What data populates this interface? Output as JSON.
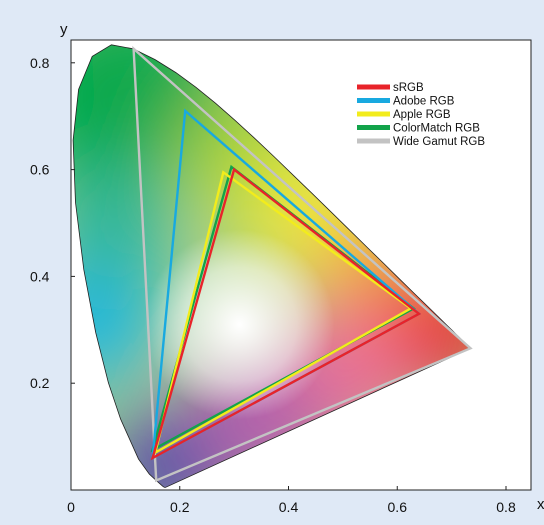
{
  "chart_data": {
    "type": "line",
    "title": "",
    "xlabel": "x",
    "ylabel": "y",
    "xlim": [
      0,
      0.85
    ],
    "ylim": [
      0,
      0.88
    ],
    "xticks": [
      "0",
      "0.2",
      "0.4",
      "0.6",
      "0.8"
    ],
    "xtick_values": [
      0,
      0.2,
      0.4,
      0.6,
      0.8
    ],
    "yticks": [
      "0.2",
      "0.4",
      "0.6",
      "0.8"
    ],
    "ytick_values": [
      0.2,
      0.4,
      0.6,
      0.8
    ],
    "grid": false,
    "legend_position": "top-right",
    "spectral_locus": [
      [
        0.1741,
        0.005
      ],
      [
        0.1738,
        0.0049
      ],
      [
        0.1733,
        0.0048
      ],
      [
        0.1726,
        0.0048
      ],
      [
        0.1714,
        0.0051
      ],
      [
        0.1689,
        0.0069
      ],
      [
        0.1644,
        0.0109
      ],
      [
        0.1566,
        0.0177
      ],
      [
        0.144,
        0.0297
      ],
      [
        0.1241,
        0.0578
      ],
      [
        0.0913,
        0.1327
      ],
      [
        0.0687,
        0.2007
      ],
      [
        0.0454,
        0.295
      ],
      [
        0.0235,
        0.4127
      ],
      [
        0.0082,
        0.5384
      ],
      [
        0.0039,
        0.6548
      ],
      [
        0.0139,
        0.7502
      ],
      [
        0.0389,
        0.812
      ],
      [
        0.0743,
        0.8338
      ],
      [
        0.1142,
        0.8262
      ],
      [
        0.1547,
        0.8059
      ],
      [
        0.1929,
        0.7816
      ],
      [
        0.2296,
        0.7543
      ],
      [
        0.2658,
        0.7243
      ],
      [
        0.3016,
        0.6923
      ],
      [
        0.3373,
        0.6589
      ],
      [
        0.3731,
        0.6245
      ],
      [
        0.4087,
        0.5896
      ],
      [
        0.4441,
        0.5547
      ],
      [
        0.4788,
        0.5202
      ],
      [
        0.5125,
        0.4866
      ],
      [
        0.5448,
        0.4544
      ],
      [
        0.5752,
        0.4242
      ],
      [
        0.6029,
        0.3965
      ],
      [
        0.627,
        0.3725
      ],
      [
        0.6482,
        0.3514
      ],
      [
        0.6658,
        0.334
      ],
      [
        0.6801,
        0.3197
      ],
      [
        0.6915,
        0.3083
      ],
      [
        0.7006,
        0.2993
      ],
      [
        0.7079,
        0.292
      ],
      [
        0.714,
        0.2859
      ],
      [
        0.719,
        0.2809
      ],
      [
        0.723,
        0.277
      ],
      [
        0.726,
        0.274
      ],
      [
        0.7283,
        0.2717
      ],
      [
        0.73,
        0.27
      ],
      [
        0.7311,
        0.2689
      ],
      [
        0.732,
        0.268
      ],
      [
        0.7327,
        0.2673
      ],
      [
        0.7334,
        0.2666
      ],
      [
        0.734,
        0.266
      ],
      [
        0.7344,
        0.2656
      ],
      [
        0.7346,
        0.2654
      ],
      [
        0.7347,
        0.2653
      ]
    ],
    "series": [
      {
        "name": "sRGB",
        "color": "#e8232a",
        "points": [
          [
            0.64,
            0.33
          ],
          [
            0.3,
            0.6
          ],
          [
            0.15,
            0.06
          ]
        ]
      },
      {
        "name": "Adobe RGB",
        "color": "#18a9e0",
        "points": [
          [
            0.64,
            0.33
          ],
          [
            0.21,
            0.71
          ],
          [
            0.15,
            0.06
          ]
        ]
      },
      {
        "name": "Apple RGB",
        "color": "#f2ec1c",
        "points": [
          [
            0.625,
            0.34
          ],
          [
            0.28,
            0.595
          ],
          [
            0.155,
            0.07
          ]
        ]
      },
      {
        "name": "ColorMatch RGB",
        "color": "#12a34a",
        "points": [
          [
            0.63,
            0.34
          ],
          [
            0.295,
            0.605
          ],
          [
            0.15,
            0.075
          ]
        ]
      },
      {
        "name": "Wide Gamut RGB",
        "color": "#c3c3c3",
        "points": [
          [
            0.7347,
            0.2653
          ],
          [
            0.1152,
            0.8264
          ],
          [
            0.1566,
            0.0177
          ]
        ]
      }
    ]
  }
}
